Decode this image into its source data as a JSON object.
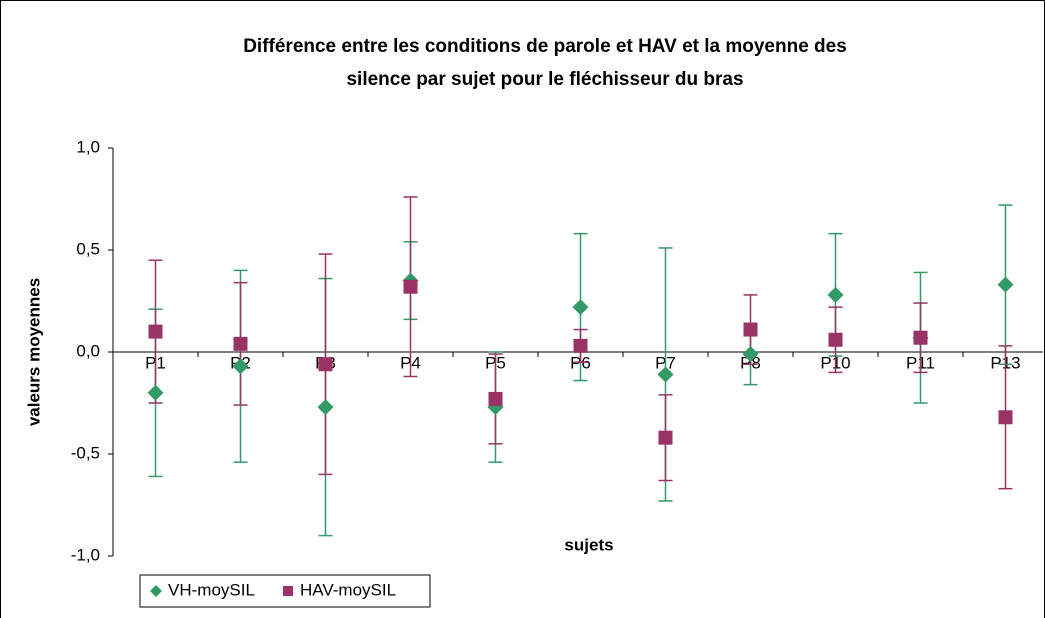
{
  "chart_data": {
    "type": "errorbar",
    "title": [
      "Différence entre les conditions de parole et HAV et la moyenne des",
      "silence par sujet pour le fléchisseur du bras"
    ],
    "xlabel": "sujets",
    "ylabel": "valeurs moyennes",
    "categories": [
      "P1",
      "P2",
      "P3",
      "P4",
      "P5",
      "P6",
      "P7",
      "P8",
      "P10",
      "P11",
      "P13"
    ],
    "series": [
      {
        "name": "VH-moySIL",
        "color": "#339966",
        "marker": "diamond",
        "values": [
          -0.2,
          -0.07,
          -0.27,
          0.35,
          -0.27,
          0.22,
          -0.11,
          -0.01,
          0.28,
          0.07,
          0.33
        ],
        "errors": [
          0.41,
          0.47,
          0.63,
          0.19,
          0.27,
          0.36,
          0.62,
          0.15,
          0.3,
          0.32,
          0.39
        ]
      },
      {
        "name": "HAV-moySIL",
        "color": "#993366",
        "marker": "square",
        "values": [
          0.1,
          0.04,
          -0.06,
          0.32,
          -0.23,
          0.03,
          -0.42,
          0.11,
          0.06,
          0.07,
          -0.32
        ],
        "errors": [
          0.35,
          0.3,
          0.54,
          0.44,
          0.22,
          0.08,
          0.21,
          0.17,
          0.16,
          0.17,
          0.35
        ]
      }
    ],
    "ylim": [
      -1,
      1
    ],
    "yticks": [
      {
        "value": -1,
        "label": "-1,0"
      },
      {
        "value": -0.5,
        "label": "-0,5"
      },
      {
        "value": 0,
        "label": "0,0"
      },
      {
        "value": 0.5,
        "label": "0,5"
      },
      {
        "value": 1,
        "label": "1,0"
      }
    ],
    "legend": "bottom-left"
  }
}
